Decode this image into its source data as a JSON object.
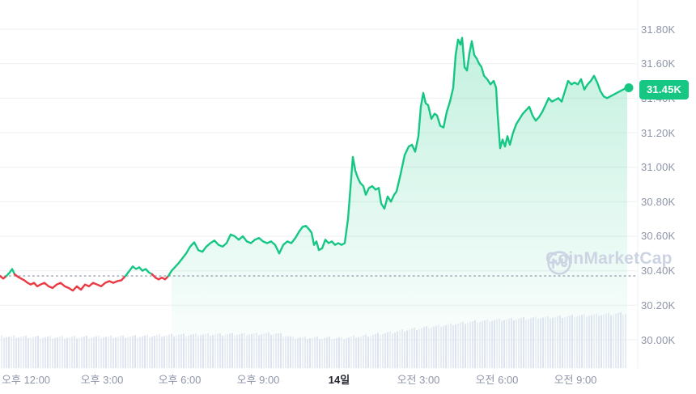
{
  "watermark": {
    "text": "CoinMarketCap"
  },
  "colors": {
    "green": "#16c784",
    "red": "#ea3943",
    "grid": "#eef0f4",
    "axis_text": "#8e95a9",
    "bold_text": "#222531",
    "volume_bar": "#dde3ef",
    "dotted_line": "#98a1b3",
    "fill_top": "rgba(22,199,132,0.26)",
    "fill_bottom": "rgba(22,199,132,0.0)",
    "badge_bg": "#16c784",
    "badge_text": "#ffffff",
    "watermark": "#ccd3e2"
  },
  "chart_data": {
    "type": "area",
    "title": "",
    "current_price_label": "31.45K",
    "current_price": 31.45,
    "open_price": 30.37,
    "grid": "horizontal-only",
    "legend": "none",
    "y_axis": {
      "side": "right",
      "min": 30.0,
      "max": 31.8,
      "tick_step": 0.2,
      "ticks": [
        "31.80K",
        "31.60K",
        "31.40K",
        "31.20K",
        "31.00K",
        "30.80K",
        "30.60K",
        "30.40K",
        "30.20K",
        "30.00K"
      ],
      "tick_prices": [
        31.8,
        31.6,
        31.4,
        31.2,
        31.0,
        30.8,
        30.6,
        30.4,
        30.2,
        30.0
      ]
    },
    "x_axis": {
      "ticks": [
        {
          "label": "오후 12:00",
          "x": 32,
          "bold": false
        },
        {
          "label": "오후 3:00",
          "x": 126,
          "bold": false
        },
        {
          "label": "오후 6:00",
          "x": 222,
          "bold": false
        },
        {
          "label": "오후 9:00",
          "x": 319,
          "bold": false
        },
        {
          "label": "14일",
          "x": 419,
          "bold": true
        },
        {
          "label": "오전 3:00",
          "x": 517,
          "bold": false
        },
        {
          "label": "오전 6:00",
          "x": 614,
          "bold": false
        },
        {
          "label": "오전 9:00",
          "x": 711,
          "bold": false
        }
      ]
    },
    "series": {
      "name": "price",
      "unit": "K",
      "points": [
        [
          0,
          30.37
        ],
        [
          4,
          30.355
        ],
        [
          8,
          30.37
        ],
        [
          12,
          30.39
        ],
        [
          15,
          30.41
        ],
        [
          18,
          30.38
        ],
        [
          22,
          30.365
        ],
        [
          26,
          30.355
        ],
        [
          30,
          30.345
        ],
        [
          34,
          30.33
        ],
        [
          38,
          30.32
        ],
        [
          42,
          30.33
        ],
        [
          46,
          30.31
        ],
        [
          50,
          30.32
        ],
        [
          55,
          30.33
        ],
        [
          60,
          30.31
        ],
        [
          65,
          30.3
        ],
        [
          70,
          30.32
        ],
        [
          75,
          30.33
        ],
        [
          80,
          30.31
        ],
        [
          85,
          30.3
        ],
        [
          90,
          30.285
        ],
        [
          95,
          30.31
        ],
        [
          100,
          30.29
        ],
        [
          105,
          30.32
        ],
        [
          110,
          30.31
        ],
        [
          115,
          30.33
        ],
        [
          120,
          30.32
        ],
        [
          125,
          30.31
        ],
        [
          130,
          30.33
        ],
        [
          135,
          30.34
        ],
        [
          140,
          30.33
        ],
        [
          145,
          30.34
        ],
        [
          150,
          30.345
        ],
        [
          155,
          30.37
        ],
        [
          160,
          30.4
        ],
        [
          164,
          30.425
        ],
        [
          168,
          30.41
        ],
        [
          172,
          30.42
        ],
        [
          176,
          30.4
        ],
        [
          180,
          30.41
        ],
        [
          184,
          30.39
        ],
        [
          188,
          30.38
        ],
        [
          192,
          30.36
        ],
        [
          196,
          30.35
        ],
        [
          200,
          30.36
        ],
        [
          204,
          30.35
        ],
        [
          208,
          30.37
        ],
        [
          212,
          30.4
        ],
        [
          216,
          30.42
        ],
        [
          220,
          30.44
        ],
        [
          225,
          30.47
        ],
        [
          230,
          30.5
        ],
        [
          235,
          30.54
        ],
        [
          240,
          30.565
        ],
        [
          245,
          30.52
        ],
        [
          250,
          30.51
        ],
        [
          255,
          30.54
        ],
        [
          260,
          30.56
        ],
        [
          265,
          30.575
        ],
        [
          270,
          30.55
        ],
        [
          275,
          30.54
        ],
        [
          280,
          30.56
        ],
        [
          285,
          30.61
        ],
        [
          290,
          30.6
        ],
        [
          295,
          30.58
        ],
        [
          300,
          30.6
        ],
        [
          305,
          30.57
        ],
        [
          310,
          30.56
        ],
        [
          315,
          30.58
        ],
        [
          320,
          30.59
        ],
        [
          325,
          30.57
        ],
        [
          330,
          30.56
        ],
        [
          335,
          30.57
        ],
        [
          340,
          30.55
        ],
        [
          345,
          30.5
        ],
        [
          350,
          30.55
        ],
        [
          355,
          30.57
        ],
        [
          360,
          30.56
        ],
        [
          365,
          30.59
        ],
        [
          370,
          30.63
        ],
        [
          374,
          30.655
        ],
        [
          378,
          30.66
        ],
        [
          382,
          30.64
        ],
        [
          385,
          30.62
        ],
        [
          388,
          30.55
        ],
        [
          391,
          30.57
        ],
        [
          394,
          30.52
        ],
        [
          398,
          30.53
        ],
        [
          402,
          30.58
        ],
        [
          406,
          30.56
        ],
        [
          410,
          30.57
        ],
        [
          414,
          30.55
        ],
        [
          418,
          30.56
        ],
        [
          422,
          30.55
        ],
        [
          426,
          30.56
        ],
        [
          430,
          30.7
        ],
        [
          433,
          30.88
        ],
        [
          436,
          31.06
        ],
        [
          439,
          30.98
        ],
        [
          442,
          30.94
        ],
        [
          445,
          30.91
        ],
        [
          449,
          30.89
        ],
        [
          452,
          30.84
        ],
        [
          456,
          30.88
        ],
        [
          460,
          30.89
        ],
        [
          464,
          30.87
        ],
        [
          468,
          30.88
        ],
        [
          471,
          30.79
        ],
        [
          475,
          30.76
        ],
        [
          479,
          30.83
        ],
        [
          483,
          30.8
        ],
        [
          487,
          30.84
        ],
        [
          490,
          30.86
        ],
        [
          495,
          30.96
        ],
        [
          500,
          31.07
        ],
        [
          505,
          31.12
        ],
        [
          509,
          31.13
        ],
        [
          513,
          31.09
        ],
        [
          517,
          31.18
        ],
        [
          520,
          31.35
        ],
        [
          523,
          31.43
        ],
        [
          526,
          31.37
        ],
        [
          529,
          31.36
        ],
        [
          533,
          31.28
        ],
        [
          537,
          31.31
        ],
        [
          540,
          31.3
        ],
        [
          544,
          31.24
        ],
        [
          548,
          31.23
        ],
        [
          552,
          31.32
        ],
        [
          556,
          31.38
        ],
        [
          560,
          31.46
        ],
        [
          563,
          31.65
        ],
        [
          566,
          31.74
        ],
        [
          569,
          31.71
        ],
        [
          571,
          31.75
        ],
        [
          574,
          31.58
        ],
        [
          577,
          31.56
        ],
        [
          580,
          31.66
        ],
        [
          583,
          31.73
        ],
        [
          586,
          31.65
        ],
        [
          589,
          31.63
        ],
        [
          592,
          31.6
        ],
        [
          595,
          31.58
        ],
        [
          598,
          31.53
        ],
        [
          602,
          31.51
        ],
        [
          606,
          31.48
        ],
        [
          610,
          31.5
        ],
        [
          613,
          31.46
        ],
        [
          615,
          31.3
        ],
        [
          618,
          31.11
        ],
        [
          621,
          31.16
        ],
        [
          624,
          31.12
        ],
        [
          627,
          31.18
        ],
        [
          630,
          31.13
        ],
        [
          634,
          31.2
        ],
        [
          638,
          31.25
        ],
        [
          642,
          31.28
        ],
        [
          646,
          31.31
        ],
        [
          650,
          31.33
        ],
        [
          654,
          31.35
        ],
        [
          658,
          31.3
        ],
        [
          662,
          31.27
        ],
        [
          666,
          31.29
        ],
        [
          670,
          31.32
        ],
        [
          674,
          31.36
        ],
        [
          678,
          31.4
        ],
        [
          682,
          31.38
        ],
        [
          686,
          31.39
        ],
        [
          690,
          31.4
        ],
        [
          694,
          31.38
        ],
        [
          698,
          31.44
        ],
        [
          702,
          31.5
        ],
        [
          706,
          31.48
        ],
        [
          710,
          31.49
        ],
        [
          714,
          31.48
        ],
        [
          718,
          31.51
        ],
        [
          722,
          31.45
        ],
        [
          726,
          31.48
        ],
        [
          730,
          31.5
        ],
        [
          734,
          31.53
        ],
        [
          738,
          31.49
        ],
        [
          742,
          31.44
        ],
        [
          746,
          31.41
        ],
        [
          750,
          31.4
        ],
        [
          754,
          31.41
        ],
        [
          758,
          31.42
        ],
        [
          762,
          31.43
        ],
        [
          766,
          31.44
        ],
        [
          770,
          31.45
        ],
        [
          775,
          31.46
        ]
      ]
    },
    "volume": {
      "note": "relative volume bar top y-anchors, baseline 455",
      "anchors": [
        [
          0,
          416
        ],
        [
          80,
          417
        ],
        [
          160,
          416
        ],
        [
          220,
          414
        ],
        [
          300,
          413
        ],
        [
          340,
          412
        ],
        [
          360,
          417
        ],
        [
          420,
          418
        ],
        [
          460,
          414
        ],
        [
          500,
          408
        ],
        [
          540,
          403
        ],
        [
          580,
          398
        ],
        [
          620,
          395
        ],
        [
          660,
          393
        ],
        [
          700,
          391
        ],
        [
          740,
          389
        ],
        [
          775,
          387
        ]
      ]
    }
  }
}
